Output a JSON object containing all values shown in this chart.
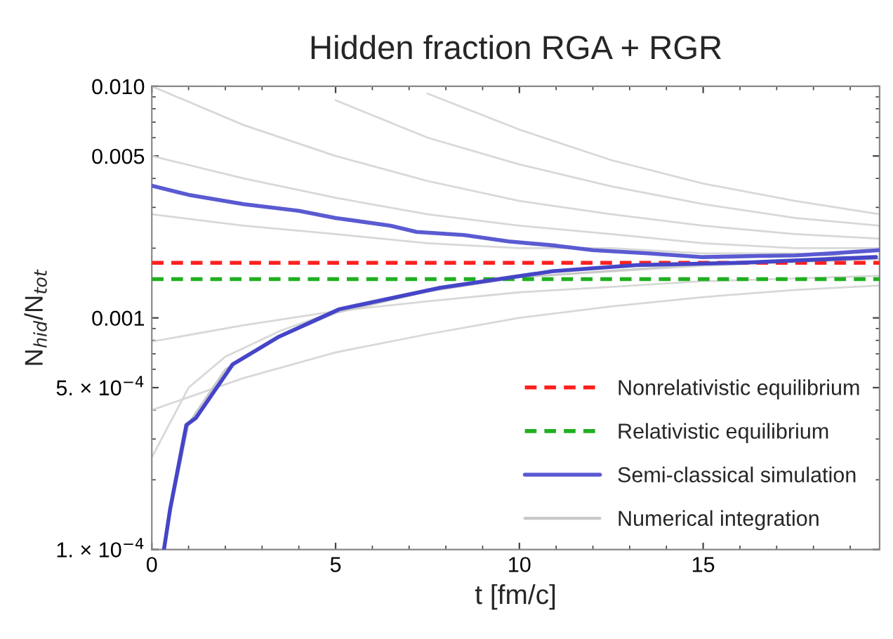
{
  "chart_data": {
    "type": "line",
    "title": "Hidden fraction RGA + RGR",
    "xlabel": "t [fm/c]",
    "ylabel": "N$_{hid}$/N$_{tot}$",
    "log": "y",
    "xlim": [
      0,
      19.8
    ],
    "ylim": [
      0.0001,
      0.01
    ],
    "xticks": [
      0,
      5,
      10,
      15
    ],
    "yticks": [
      {
        "value": 0.0001,
        "label": "1. × 10$^{−4}$"
      },
      {
        "value": 0.0005,
        "label": "5. × 10$^{−4}$"
      },
      {
        "value": 0.001,
        "label": "0.001"
      },
      {
        "value": 0.005,
        "label": "0.005"
      },
      {
        "value": 0.01,
        "label": "0.010"
      }
    ],
    "grid": false,
    "legend": "bottom right",
    "line_style": "solid",
    "marker": "none",
    "ref_lines": [
      {
        "axis": "y",
        "value": 0.00173,
        "label": "Nonrelativistic equilibrium",
        "color": "#ff2020",
        "line_style": "dashed"
      },
      {
        "axis": "y",
        "value": 0.00147,
        "label": "Relativistic equilibrium",
        "color": "#20b020",
        "line_style": "dashed"
      }
    ],
    "series": [
      {
        "type": "line",
        "color": "#d8d8d8",
        "x": [
          7.5,
          10,
          12.5,
          15,
          17.5,
          19.8
        ],
        "values": [
          0.0093,
          0.0065,
          0.0048,
          0.0038,
          0.0032,
          0.0028
        ]
      },
      {
        "type": "line",
        "color": "#d8d8d8",
        "x": [
          5,
          7.5,
          10,
          12.5,
          15,
          17.5,
          19.8
        ],
        "values": [
          0.0087,
          0.006,
          0.0046,
          0.0037,
          0.0031,
          0.0027,
          0.0025
        ]
      },
      {
        "type": "line",
        "color": "#d8d8d8",
        "x": [
          0,
          2.5,
          5,
          7.5,
          10,
          12.5,
          15,
          17.5,
          19.8
        ],
        "values": [
          0.01,
          0.0068,
          0.005,
          0.0039,
          0.0032,
          0.0028,
          0.0025,
          0.0023,
          0.0022
        ]
      },
      {
        "type": "line",
        "color": "#d8d8d8",
        "x": [
          0,
          2.5,
          5,
          7.5,
          10,
          12.5,
          15,
          17.5,
          19.8
        ],
        "values": [
          0.005,
          0.004,
          0.0033,
          0.0028,
          0.0025,
          0.0023,
          0.0021,
          0.002,
          0.002
        ]
      },
      {
        "type": "line",
        "color": "#d8d8d8",
        "x": [
          0,
          2.5,
          5,
          7.5,
          10,
          12.5,
          15,
          17.5,
          19.8
        ],
        "values": [
          0.0028,
          0.0025,
          0.0023,
          0.0021,
          0.002,
          0.002,
          0.0019,
          0.0019,
          0.0018
        ]
      },
      {
        "type": "line",
        "color": "#d8d8d8",
        "x": [
          0,
          2.5,
          5,
          7.5,
          10,
          12.5,
          15,
          17.5,
          19.8
        ],
        "values": [
          0.00079,
          0.00093,
          0.00107,
          0.00118,
          0.00129,
          0.00136,
          0.00144,
          0.00148,
          0.00152
        ]
      },
      {
        "type": "line",
        "color": "#d8d8d8",
        "x": [
          0,
          2.5,
          5,
          7.5,
          10,
          12.5,
          15,
          17.5,
          19.8
        ],
        "values": [
          0.0004,
          0.00055,
          0.00071,
          0.00085,
          0.001,
          0.00112,
          0.00123,
          0.00132,
          0.00138
        ]
      },
      {
        "type": "line",
        "color": "#d8d8d8",
        "x": [
          0,
          1,
          2,
          3.5,
          5,
          7.5,
          10,
          15,
          19.8
        ],
        "values": [
          0.00025,
          0.0005,
          0.00068,
          0.00088,
          0.00107,
          0.0013,
          0.0015,
          0.00168,
          0.0018
        ]
      },
      {
        "type": "line",
        "name": "Numerical integration",
        "color": "#c8c8c8",
        "x": [
          0.3,
          1,
          2,
          3.5,
          5,
          7.5,
          10,
          15,
          19.8
        ],
        "values": [
          0.0001,
          0.00035,
          0.0006,
          0.00083,
          0.00105,
          0.0013,
          0.0015,
          0.0017,
          0.0018
        ]
      },
      {
        "type": "line",
        "name": "Semi-classical simulation",
        "color": "#5a5ad2",
        "x": [
          0,
          1,
          2.5,
          4,
          5,
          6.5,
          7.2,
          8.5,
          9.7,
          11,
          12,
          13.5,
          15,
          16.5,
          17.5,
          18.5,
          19.8
        ],
        "values": [
          0.00372,
          0.0034,
          0.0031,
          0.0029,
          0.0027,
          0.0025,
          0.00235,
          0.00228,
          0.00214,
          0.00205,
          0.00196,
          0.0019,
          0.00183,
          0.00185,
          0.00186,
          0.0019,
          0.00196
        ]
      },
      {
        "type": "line",
        "color": "#4545c8",
        "x": [
          0.33,
          0.5,
          0.94,
          1.2,
          2.2,
          3.46,
          5.1,
          7.85,
          10.9,
          13.2,
          16,
          19.7
        ],
        "values": [
          0.0001,
          0.00015,
          0.000345,
          0.00037,
          0.00063,
          0.00083,
          0.00109,
          0.00135,
          0.00159,
          0.00169,
          0.00173,
          0.00183
        ]
      }
    ]
  }
}
